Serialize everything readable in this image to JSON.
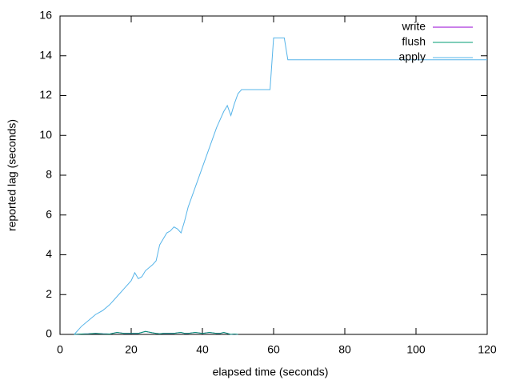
{
  "chart_data": {
    "type": "line",
    "xlabel": "elapsed time (seconds)",
    "ylabel": "reported lag (seconds)",
    "x": [
      4,
      6,
      8,
      10,
      12,
      14,
      16,
      18,
      20,
      21,
      22,
      23,
      24,
      26,
      27,
      28,
      29,
      30,
      31,
      32,
      33,
      34,
      35,
      36,
      38,
      40,
      42,
      44,
      45,
      46,
      47,
      48,
      49,
      50,
      51,
      55,
      59,
      60,
      63,
      64,
      120
    ],
    "series": [
      {
        "name": "write",
        "color": "#9400d3",
        "values": [
          0,
          0.02,
          0.03,
          0.05,
          0.03,
          0.02,
          0.1,
          0.05,
          0.05,
          0.05,
          0.05,
          0.1,
          0.15,
          0.08,
          0.05,
          0.03,
          0.05,
          0.05,
          0.05,
          0.05,
          0.08,
          0.1,
          0.05,
          0.05,
          0.1,
          0.05,
          0.1,
          0.05,
          0.05,
          0.1,
          0.05,
          0,
          0.02,
          0,
          null,
          null,
          null,
          null,
          null,
          null,
          null
        ]
      },
      {
        "name": "flush",
        "color": "#009e73",
        "values": [
          0,
          0.02,
          0.03,
          0.05,
          0.03,
          0.02,
          0.1,
          0.05,
          0.05,
          0.05,
          0.05,
          0.1,
          0.15,
          0.08,
          0.05,
          0.03,
          0.05,
          0.05,
          0.05,
          0.05,
          0.08,
          0.1,
          0.05,
          0.05,
          0.1,
          0.05,
          0.1,
          0.05,
          0.05,
          0.1,
          0.05,
          0,
          0.02,
          0,
          null,
          null,
          null,
          null,
          null,
          null,
          null
        ]
      },
      {
        "name": "apply",
        "color": "#56b4e9",
        "values": [
          0,
          0.4,
          0.7,
          1.0,
          1.2,
          1.5,
          1.9,
          2.3,
          2.7,
          3.1,
          2.8,
          2.9,
          3.2,
          3.5,
          3.7,
          4.5,
          4.8,
          5.1,
          5.2,
          5.4,
          5.3,
          5.1,
          5.7,
          6.4,
          7.4,
          8.4,
          9.4,
          10.4,
          10.8,
          11.2,
          11.5,
          11.0,
          11.6,
          12.1,
          12.3,
          12.3,
          12.3,
          14.9,
          14.9,
          13.8,
          13.8
        ]
      }
    ],
    "xlim": [
      0,
      120
    ],
    "xticks": [
      0,
      20,
      40,
      60,
      80,
      100,
      120
    ],
    "ylim": [
      0,
      16
    ],
    "yticks": [
      0,
      2,
      4,
      6,
      8,
      10,
      12,
      14,
      16
    ],
    "legend": "top-right"
  }
}
